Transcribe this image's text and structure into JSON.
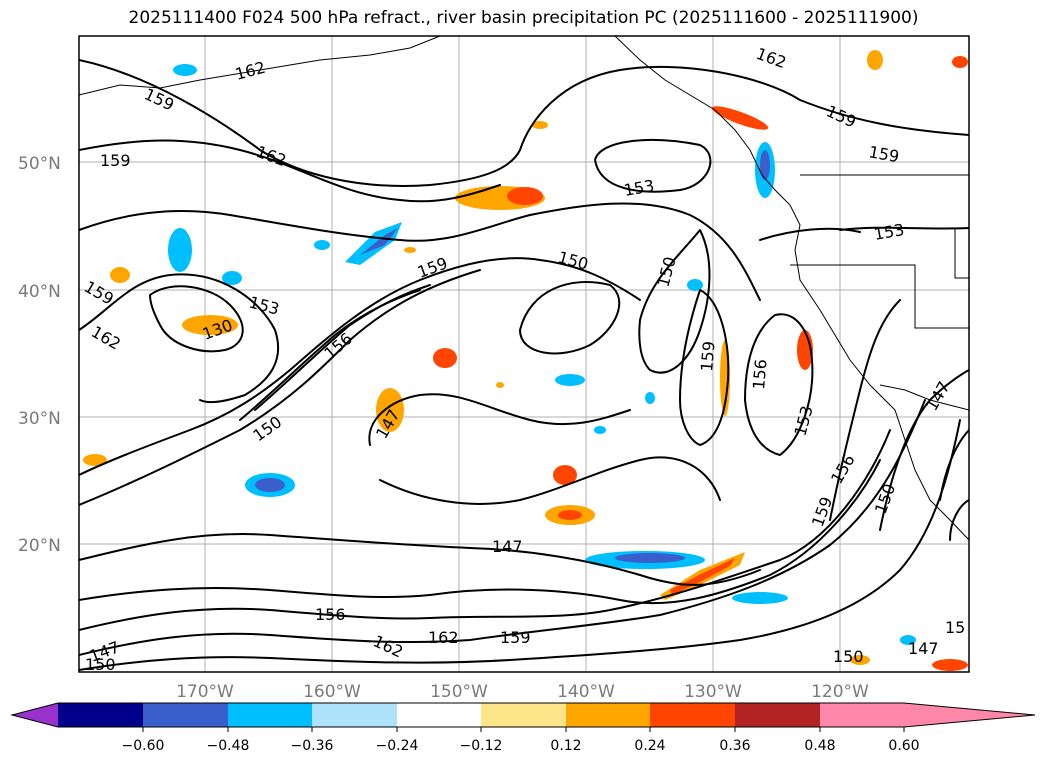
{
  "title": "2025111400 F024 500 hPa refract., river basin precipitation PC (2025111600 - 2025111900)",
  "map": {
    "lat_labels": [
      "50°N",
      "40°N",
      "30°N",
      "20°N"
    ],
    "lon_labels": [
      "170°W",
      "160°W",
      "150°W",
      "140°W",
      "130°W",
      "120°W"
    ],
    "contour_labels": [
      {
        "text": "162",
        "rot": -15
      },
      {
        "text": "159",
        "rot": 25
      },
      {
        "text": "159",
        "rot": 0
      },
      {
        "text": "162",
        "rot": 20
      },
      {
        "text": "159",
        "rot": 30
      },
      {
        "text": "162",
        "rot": 30
      },
      {
        "text": "153",
        "rot": 15
      },
      {
        "text": "130",
        "rot": -20
      },
      {
        "text": "159",
        "rot": -20
      },
      {
        "text": "156",
        "rot": -40
      },
      {
        "text": "150",
        "rot": -35
      },
      {
        "text": "147",
        "rot": -60
      },
      {
        "text": "150",
        "rot": 15
      },
      {
        "text": "150",
        "rot": -75
      },
      {
        "text": "153",
        "rot": -10
      },
      {
        "text": "147",
        "rot": 0
      },
      {
        "text": "159",
        "rot": -85
      },
      {
        "text": "156",
        "rot": -85
      },
      {
        "text": "153",
        "rot": -75
      },
      {
        "text": "150",
        "rot": -70
      },
      {
        "text": "159",
        "rot": -70
      },
      {
        "text": "156",
        "rot": -60
      },
      {
        "text": "162",
        "rot": 20
      },
      {
        "text": "159",
        "rot": 25
      },
      {
        "text": "159",
        "rot": 10
      },
      {
        "text": "153",
        "rot": -10
      },
      {
        "text": "162",
        "rot": 0
      },
      {
        "text": "159",
        "rot": 0
      },
      {
        "text": "162",
        "rot": 25
      },
      {
        "text": "156",
        "rot": 0
      },
      {
        "text": "147",
        "rot": -20
      },
      {
        "text": "150",
        "rot": 0
      },
      {
        "text": "147",
        "rot": 0
      },
      {
        "text": "147",
        "rot": -60
      },
      {
        "text": "150",
        "rot": 0
      },
      {
        "text": "15",
        "rot": 0
      }
    ],
    "colors": {
      "neg_strong": "#3a5fcd",
      "neg_mid": "#00bfff",
      "pos_mid": "#ffa500",
      "pos_strong": "#ff4500",
      "dark_red": "#b22222"
    }
  },
  "colorbar": {
    "ticks": [
      "−0.60",
      "−0.48",
      "−0.36",
      "−0.24",
      "−0.12",
      "0.12",
      "0.24",
      "0.36",
      "0.48",
      "0.60"
    ],
    "colors": [
      "#9932cc",
      "#00008b",
      "#3a5fcd",
      "#00bfff",
      "#aee2fa",
      "#ffffff",
      "#fde68a",
      "#ffa500",
      "#ff4500",
      "#b22222",
      "#ff88aa"
    ]
  }
}
